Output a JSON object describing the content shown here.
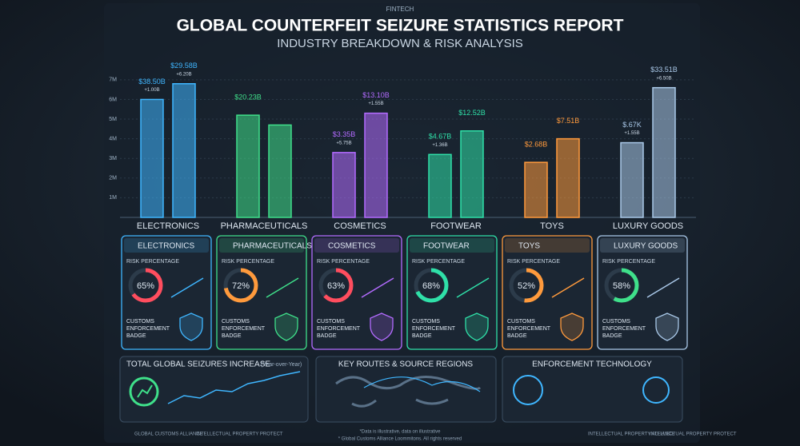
{
  "header": {
    "brand": "FINTECH",
    "title": "GLOBAL COUNTERFEIT SEIZURE STATISTICS REPORT",
    "subtitle": "INDUSTRY BREAKDOWN & RISK ANALYSIS"
  },
  "chart_data": {
    "type": "bar",
    "categories": [
      "ELECTRONICS",
      "PHARMACEUTICALS",
      "COSMETICS",
      "FOOTWEAR",
      "TOYS",
      "LUXURY GOODS"
    ],
    "colors": [
      "#3fb6ff",
      "#3fe08a",
      "#b36bff",
      "#2fe0a8",
      "#ff9a3c",
      "#a9c8e8"
    ],
    "series": [
      {
        "values": [
          6.0,
          5.2,
          3.3,
          3.2,
          2.8,
          3.8
        ]
      },
      {
        "values": [
          6.8,
          4.7,
          5.3,
          4.4,
          4.0,
          6.6
        ]
      }
    ],
    "bar_labels": [
      [
        [
          "$38.50B",
          "+1.00B"
        ],
        [
          "$29.58B",
          "+6.20B"
        ]
      ],
      [
        [
          "$20.23B"
        ],
        []
      ],
      [
        [
          "$3.35B",
          "+5.75B"
        ],
        [
          "$13.10B",
          "+1.55B"
        ]
      ],
      [
        [
          "$4.67B",
          "+1.36B"
        ],
        [
          "$12.52B"
        ]
      ],
      [
        [
          "$2.68B"
        ],
        [
          "$7.51B"
        ]
      ],
      [
        [
          "$.67K",
          "+1.55B"
        ],
        [
          "$33.51B",
          "+6.50B"
        ]
      ]
    ],
    "ylim": [
      0,
      7.4
    ],
    "yticks": [
      {
        "value": 1,
        "label": "1M"
      },
      {
        "value": 2,
        "label": "2M"
      },
      {
        "value": 3,
        "label": "3M"
      },
      {
        "value": 4,
        "label": "4M"
      },
      {
        "value": 5,
        "label": "5M"
      },
      {
        "value": 6,
        "label": "6M"
      },
      {
        "value": 7,
        "label": "7M"
      }
    ],
    "grid": true
  },
  "cards": {
    "risk_label": "RISK PERCENTAGE",
    "badge_label": [
      "CUSTOMS",
      "ENFORCEMENT",
      "BADGE"
    ],
    "items": [
      {
        "name": "ELECTRONICS",
        "percent": 65,
        "percent_label": "65%",
        "color": "#ff4d5e",
        "border": "#3fb6ff"
      },
      {
        "name": "PHARMACEUTICALS",
        "percent": 72,
        "percent_label": "72%",
        "color": "#ff9a3c",
        "border": "#3fe08a"
      },
      {
        "name": "COSMETICS",
        "percent": 63,
        "percent_label": "63%",
        "color": "#ff4d5e",
        "border": "#b36bff"
      },
      {
        "name": "FOOTWEAR",
        "percent": 68,
        "percent_label": "68%",
        "color": "#2fe0a8",
        "border": "#2fe0a8"
      },
      {
        "name": "TOYS",
        "percent": 52,
        "percent_label": "52%",
        "color": "#ff9a3c",
        "border": "#ff9a3c"
      },
      {
        "name": "LUXURY GOODS",
        "percent": 58,
        "percent_label": "58%",
        "color": "#3fe08a",
        "border": "#a9c8e8"
      }
    ]
  },
  "panels": {
    "seizures": "TOTAL GLOBAL SEIZURES INCREASE",
    "seizures_note": "(Year-over-Year)",
    "routes": "KEY ROUTES & SOURCE REGIONS",
    "technology": "ENFORCEMENT TECHNOLOGY"
  },
  "footer": {
    "note1": "*Data is illustrative, data on illustrative",
    "note2": "* Global Customs Alliance Loommitons. All rights reserved",
    "logo1": "GLOBAL CUSTOMS ALLIANCE",
    "logo2": "INTELLECTUAL PROPERTY PROTECT",
    "logo3": "INTELLECTUAL PROPERTY ALLIANCE",
    "logo4": "INTELLECTUAL PROPERTY PROTECT"
  }
}
